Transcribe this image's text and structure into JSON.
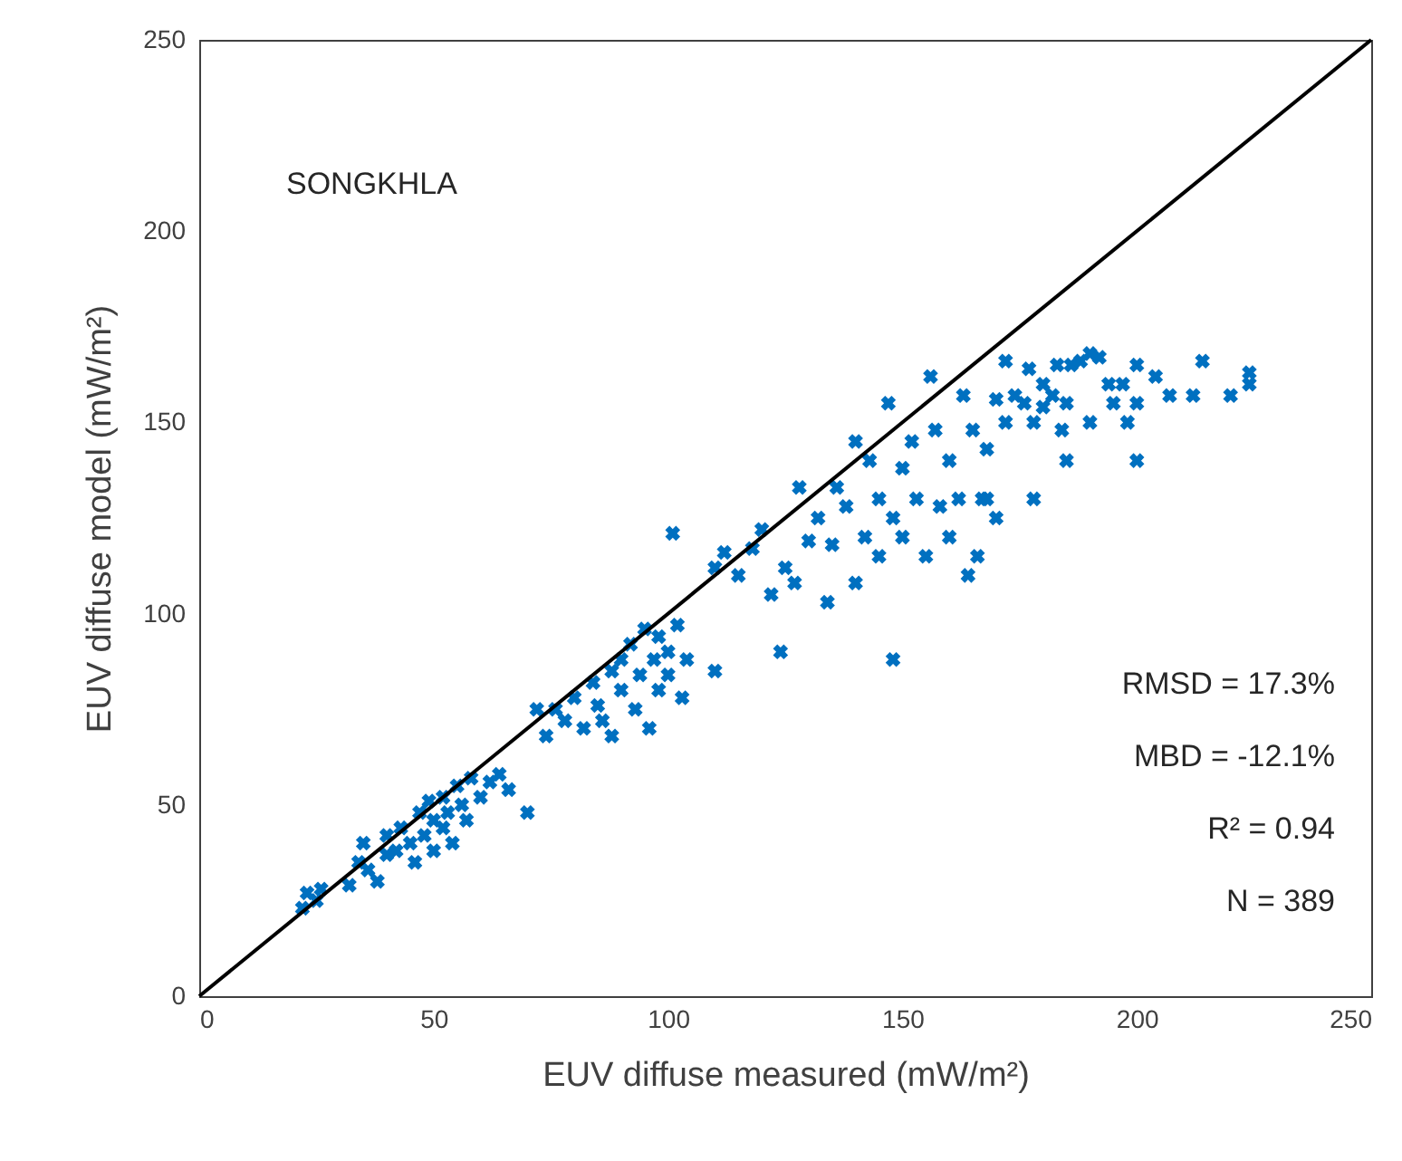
{
  "chart_data": {
    "type": "scatter",
    "xlabel": "EUV diffuse measured (mW/m²)",
    "ylabel": "EUV diffuse model (mW/m²)",
    "xlim": [
      0,
      250
    ],
    "ylim": [
      0,
      250
    ],
    "xticks": [
      0,
      50,
      100,
      150,
      200,
      250
    ],
    "yticks": [
      0,
      50,
      100,
      150,
      200,
      250
    ],
    "grid": false,
    "annotations": [
      "SONGKHLA",
      "RMSD = 17.3%",
      "MBD = -12.1%",
      "R² = 0.94",
      "N = 389"
    ],
    "series": [
      {
        "marker": "cross",
        "color": "#0070c0",
        "x": [
          22,
          23,
          25,
          26,
          32,
          34,
          35,
          36,
          38,
          40,
          40,
          42,
          43,
          45,
          46,
          47,
          48,
          49,
          50,
          50,
          52,
          52,
          53,
          54,
          55,
          56,
          57,
          58,
          60,
          62,
          64,
          66,
          70,
          72,
          74,
          76,
          78,
          80,
          82,
          84,
          85,
          86,
          88,
          88,
          90,
          90,
          92,
          93,
          94,
          95,
          96,
          97,
          98,
          98,
          100,
          100,
          101,
          102,
          103,
          104,
          110,
          110,
          112,
          115,
          118,
          120,
          122,
          124,
          125,
          127,
          128,
          130,
          132,
          134,
          135,
          136,
          138,
          140,
          140,
          142,
          143,
          145,
          145,
          147,
          148,
          148,
          150,
          150,
          152,
          153,
          155,
          156,
          157,
          158,
          160,
          160,
          162,
          163,
          164,
          165,
          167,
          168,
          170,
          170,
          172,
          172,
          174,
          176,
          177,
          178,
          180,
          180,
          182,
          183,
          184,
          185,
          186,
          188,
          190,
          190,
          192,
          194,
          195,
          197,
          198,
          200,
          200,
          204,
          207,
          212,
          214,
          220,
          224,
          224,
          200,
          185,
          178,
          168,
          166
        ],
        "values": [
          23,
          27,
          25,
          28,
          29,
          35,
          40,
          33,
          30,
          37,
          42,
          38,
          44,
          40,
          35,
          48,
          42,
          51,
          38,
          46,
          44,
          52,
          48,
          40,
          55,
          50,
          46,
          57,
          52,
          56,
          58,
          54,
          48,
          75,
          68,
          75,
          72,
          78,
          70,
          82,
          76,
          72,
          85,
          68,
          80,
          88,
          92,
          75,
          84,
          96,
          70,
          88,
          80,
          94,
          90,
          84,
          121,
          97,
          78,
          88,
          85,
          112,
          116,
          110,
          117,
          122,
          105,
          90,
          112,
          108,
          133,
          119,
          125,
          103,
          118,
          133,
          128,
          108,
          145,
          120,
          140,
          115,
          130,
          155,
          88,
          125,
          138,
          120,
          145,
          130,
          115,
          162,
          148,
          128,
          140,
          120,
          130,
          157,
          110,
          148,
          130,
          143,
          125,
          156,
          166,
          150,
          157,
          155,
          164,
          150,
          160,
          154,
          157,
          165,
          148,
          155,
          165,
          166,
          150,
          168,
          167,
          160,
          155,
          160,
          150,
          155,
          165,
          162,
          157,
          157,
          166,
          157,
          163,
          160,
          140,
          140,
          130,
          130,
          115
        ]
      },
      {
        "type": "line",
        "color": "#000000",
        "x": [
          0,
          250
        ],
        "values": [
          0,
          250
        ]
      }
    ]
  }
}
